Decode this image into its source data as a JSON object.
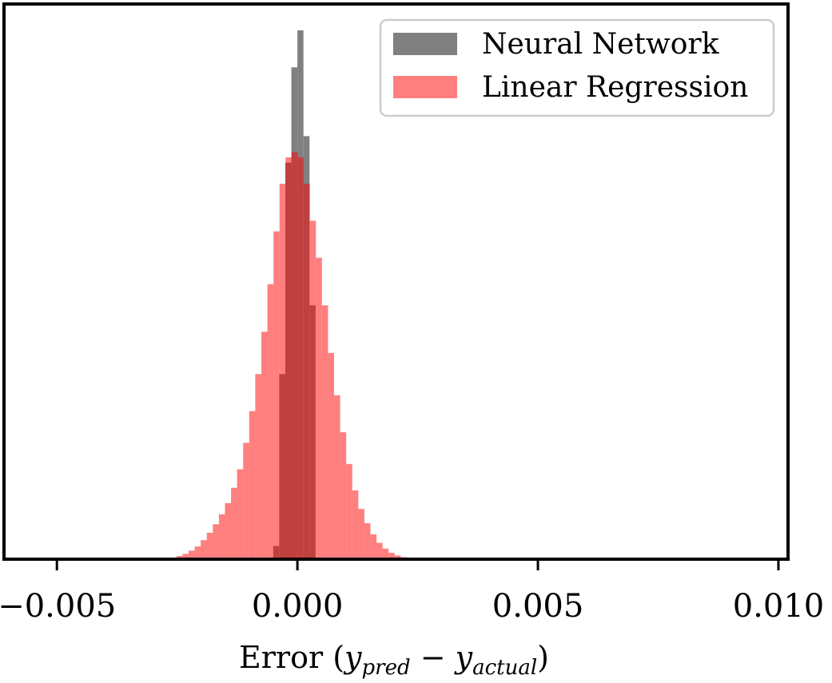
{
  "chart_data": {
    "type": "bar",
    "title": "",
    "xlabel": {
      "prefix": "Error (",
      "y1": "y",
      "sub1": "pred",
      "minus": " − ",
      "y2": "y",
      "sub2": "actual",
      "suffix": ")"
    },
    "ylabel": "",
    "xlim": [
      -0.0061,
      0.0102
    ],
    "ylim": [
      0,
      1.0
    ],
    "x_ticks": [
      {
        "value": -0.005,
        "label": "−0.005"
      },
      {
        "value": 0.0,
        "label": "0.000"
      },
      {
        "value": 0.005,
        "label": "0.005"
      },
      {
        "value": 0.01,
        "label": "0.010"
      }
    ],
    "y_ticks_visible": false,
    "grid": false,
    "legend_position": "top-right",
    "bin_width": 0.000126,
    "series": [
      {
        "name": "Neural Network",
        "color": "#808080",
        "opacity": 1.0,
        "bin_left_edges": [
          -0.000504,
          -0.000378,
          -0.000252,
          -0.000126,
          0.0,
          0.000126,
          0.000252
        ],
        "values": [
          0.025,
          0.35,
          0.75,
          0.93,
          1.0,
          0.8,
          0.48
        ]
      },
      {
        "name": "Linear Regression",
        "color": "#ff0000",
        "opacity": 0.5,
        "bin_left_edges": [
          -0.00264,
          -0.002514,
          -0.002388,
          -0.002262,
          -0.002136,
          -0.00201,
          -0.001884,
          -0.001758,
          -0.001632,
          -0.001506,
          -0.00138,
          -0.001254,
          -0.001128,
          -0.001002,
          -0.000876,
          -0.00075,
          -0.000624,
          -0.000498,
          -0.000372,
          -0.000246,
          -0.00012,
          6e-06,
          0.000132,
          0.000258,
          0.000384,
          0.00051,
          0.000636,
          0.000762,
          0.000888,
          0.001014,
          0.00114,
          0.001266,
          0.001392,
          0.001518,
          0.001644,
          0.00177,
          0.001896,
          0.002022,
          0.002148,
          0.002274
        ],
        "values": [
          0.003,
          0.006,
          0.01,
          0.016,
          0.024,
          0.036,
          0.05,
          0.066,
          0.085,
          0.106,
          0.135,
          0.17,
          0.22,
          0.28,
          0.35,
          0.43,
          0.52,
          0.62,
          0.71,
          0.76,
          0.77,
          0.76,
          0.71,
          0.64,
          0.57,
          0.48,
          0.39,
          0.31,
          0.24,
          0.18,
          0.13,
          0.095,
          0.068,
          0.047,
          0.031,
          0.02,
          0.012,
          0.007,
          0.004,
          0.002
        ]
      }
    ]
  }
}
